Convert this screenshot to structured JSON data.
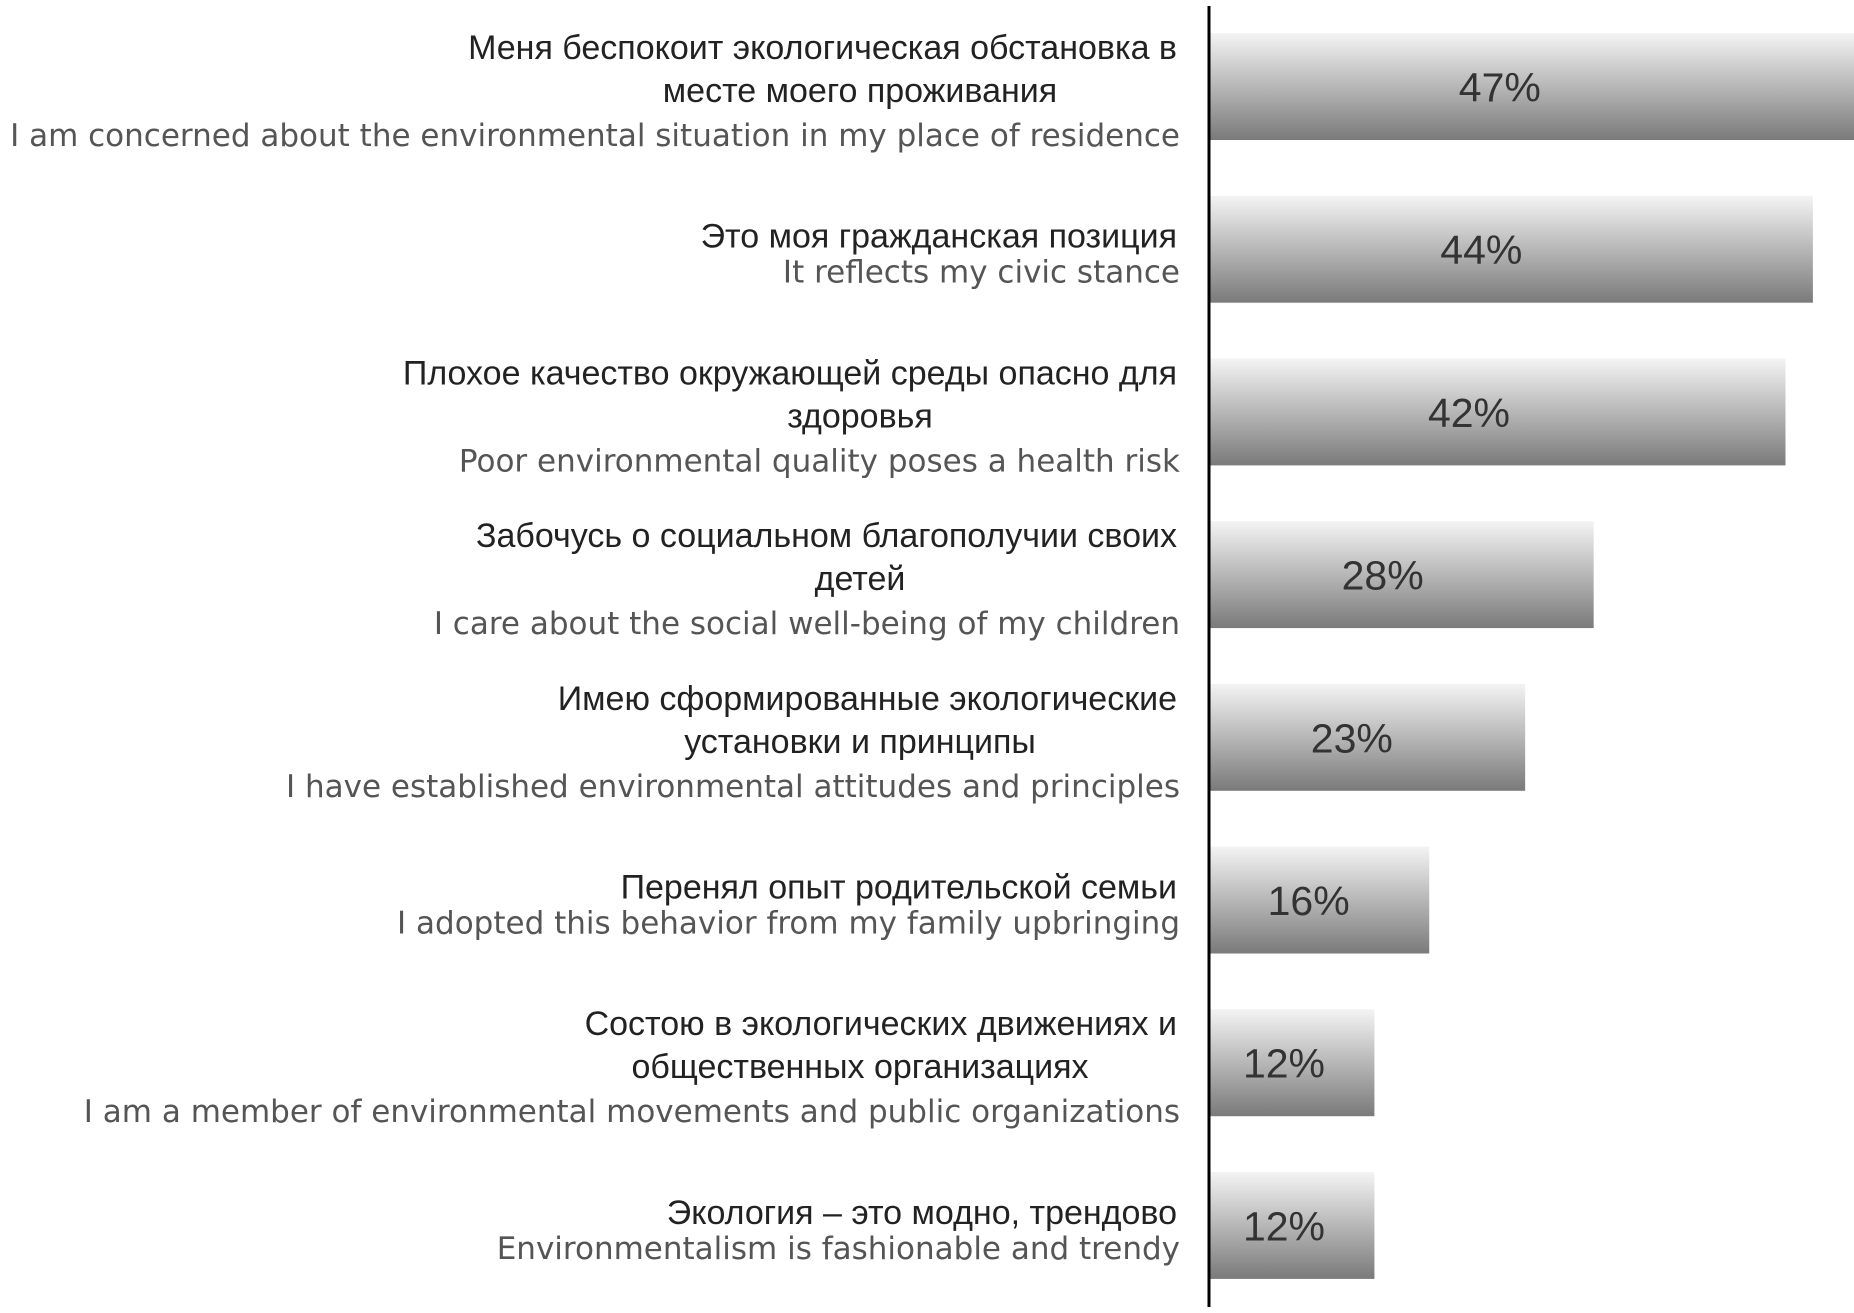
{
  "chart_data": {
    "type": "bar",
    "orientation": "horizontal",
    "title": "",
    "xlabel": "",
    "ylabel": "",
    "xlim": [
      0,
      47
    ],
    "grid": false,
    "categories": [
      {
        "ru_lines": [
          "Меня беспокоит экологическая обстановка в",
          "месте моего проживания"
        ],
        "en": "I am concerned about the environmental situation in my place of residence",
        "value": 47,
        "label": "47%"
      },
      {
        "ru_lines": [
          "Это моя гражданская позиция"
        ],
        "en": "It reflects my civic stance",
        "value": 44,
        "label": "44%"
      },
      {
        "ru_lines": [
          "Плохое качество окружающей среды опасно для",
          "здоровья"
        ],
        "en": "Poor environmental quality poses a health risk",
        "value": 42,
        "label": "42%"
      },
      {
        "ru_lines": [
          "Забочусь о социальном благополучии своих",
          "детей"
        ],
        "en": "I care about the social well-being of my children",
        "value": 28,
        "label": "28%"
      },
      {
        "ru_lines": [
          "Имею сформированные экологические",
          "установки и принципы"
        ],
        "en": "I have established environmental attitudes and principles",
        "value": 23,
        "label": "23%"
      },
      {
        "ru_lines": [
          "Перенял опыт родительской семьи"
        ],
        "en": "I adopted this behavior from my family upbringing",
        "value": 16,
        "label": "16%"
      },
      {
        "ru_lines": [
          "Состою в экологических движениях и",
          "общественных организациях"
        ],
        "en": "I am a member of environmental movements and public organizations",
        "value": 12,
        "label": "12%"
      },
      {
        "ru_lines": [
          "Экология – это модно, трендово"
        ],
        "en": "Environmentalism is fashionable and trendy",
        "value": 12,
        "label": "12%"
      }
    ],
    "colors": {
      "bar_top": "#f4f4f4",
      "bar_bottom": "#7a7a7a",
      "axis": "#000000"
    }
  }
}
